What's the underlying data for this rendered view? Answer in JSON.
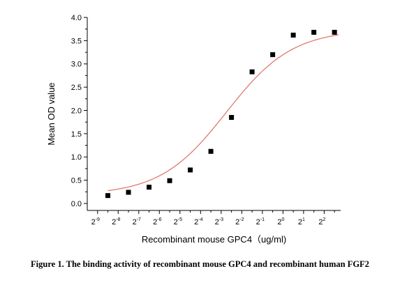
{
  "chart_data": {
    "type": "scatter",
    "title": "",
    "xlabel": "Recombinant mouse GPC4（ug/ml)",
    "ylabel": "Mean OD value",
    "x_scale": "log2",
    "x_tick_exponents": [
      -9,
      -8,
      -7,
      -6,
      -5,
      -4,
      -3,
      -2,
      -1,
      0,
      1,
      2
    ],
    "xlim_exponent": [
      -9.5,
      2.8
    ],
    "y_ticks": [
      "0.0",
      "0.5",
      "1.0",
      "1.5",
      "2.0",
      "2.5",
      "3.0",
      "3.5",
      "4.0"
    ],
    "ylim": [
      -0.15,
      4.0
    ],
    "grid": false,
    "series": [
      {
        "x_exponents": [
          -8.5,
          -7.5,
          -6.5,
          -5.5,
          -4.5,
          -3.5,
          -2.5,
          -1.5,
          -0.5,
          0.5,
          1.5,
          2.5
        ],
        "y": [
          0.17,
          0.24,
          0.35,
          0.49,
          0.72,
          1.12,
          1.85,
          2.83,
          3.2,
          3.62,
          3.68,
          3.68
        ],
        "marker": "square",
        "color": "#000000"
      }
    ],
    "fit_curve": {
      "type": "4PL",
      "color": "#e07a6e",
      "bottom": 0.18,
      "top": 3.74,
      "ec50_exponent": -2.75,
      "slope": 0.9
    }
  },
  "caption": "Figure 1. The binding activity of recombinant mouse GPC4 and recombinant human FGF2"
}
